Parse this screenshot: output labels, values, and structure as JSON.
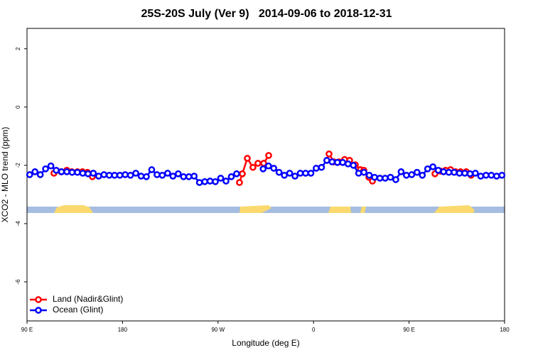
{
  "chart_data": {
    "type": "line",
    "title": "25S-20S July (Ver 9)   2014-09-06 to 2018-12-31",
    "x_label": "Longitude (deg E)",
    "y_label": "XCO2 - MLO trend (ppm)",
    "xlim": [
      90,
      540
    ],
    "ylim": [
      -7.34,
      2.7
    ],
    "xticks": [
      {
        "value": 90,
        "label": "90 E"
      },
      180,
      {
        "value": 270,
        "label": "90 W"
      },
      {
        "value": 360,
        "label": "0"
      },
      {
        "value": 450,
        "label": "90 E"
      },
      {
        "value": 540,
        "label": "180"
      }
    ],
    "yticks": [
      -6,
      -4,
      -2,
      0,
      2
    ],
    "legend": "bottom-left",
    "series": [
      {
        "name": "Land (Nadir&Glint)",
        "color": "#ff0000",
        "x": [
          115.4,
          122.1,
          127.5,
          132.2,
          137.5,
          142.2,
          146.9,
          151.6,
          200,
          290.2,
          292.9,
          297.6,
          302.9,
          307.6,
          313,
          317.7,
          390,
          374.6,
          379.3,
          384,
          389.3,
          394,
          399.4,
          404.1,
          407.4,
          412.1,
          415.5,
          450,
          474.4,
          479.7,
          484.4,
          489.1,
          493.8,
          498.5,
          503.9,
          508.5
        ],
        "values": [
          -2.27,
          -2.22,
          -2.17,
          -2.22,
          -2.22,
          -2.22,
          -2.24,
          -2.39,
          null,
          -2.59,
          -2.29,
          -1.76,
          -2.07,
          -1.93,
          -1.93,
          -1.66,
          null,
          -1.61,
          -1.88,
          -1.88,
          -1.8,
          -1.83,
          -1.98,
          -2.15,
          -2.17,
          -2.41,
          -2.54,
          null,
          -2.29,
          -2.2,
          -2.17,
          -2.15,
          -2.22,
          -2.22,
          -2.22,
          -2.34
        ]
      },
      {
        "name": "Ocean (Glint)",
        "color": "#0000ff",
        "x": [
          92.5,
          97.5,
          102.5,
          107.5,
          112.5,
          117.5,
          122.5,
          127.5,
          132.5,
          137.5,
          142.5,
          147.5,
          152.5,
          157.5,
          162.5,
          167.5,
          172.5,
          177.5,
          182.5,
          187.5,
          192.5,
          197.5,
          202.5,
          207.5,
          212.5,
          217.5,
          222.5,
          227.5,
          232.5,
          237.5,
          242.5,
          247.5,
          252.5,
          257.5,
          262.5,
          267.5,
          272.5,
          277.5,
          282.5,
          287.5,
          292.5,
          297.5,
          302.5,
          307.5,
          312.5,
          317.5,
          322.5,
          327.5,
          332.5,
          337.5,
          342.5,
          347.5,
          352.5,
          357.5,
          362.5,
          367.5,
          372.5,
          377.5,
          382.5,
          387.5,
          392.5,
          397.5,
          402.5,
          407.5,
          412.5,
          417.5,
          422.5,
          427.5,
          432.5,
          437.5,
          442.5,
          447.5,
          452.5,
          457.5,
          462.5,
          467.5,
          472.5,
          477.5,
          482.5,
          487.5,
          492.5,
          497.5,
          502.5,
          507.5,
          512.5,
          517.5,
          522.5,
          527.5,
          532.5,
          537.5
        ],
        "values": [
          -2.32,
          -2.22,
          -2.32,
          -2.12,
          -2.02,
          -2.17,
          -2.22,
          -2.22,
          -2.24,
          -2.24,
          -2.27,
          -2.29,
          -2.27,
          -2.37,
          -2.32,
          -2.34,
          -2.34,
          -2.34,
          -2.32,
          -2.34,
          -2.27,
          -2.37,
          -2.39,
          -2.15,
          -2.32,
          -2.34,
          -2.27,
          -2.37,
          -2.29,
          -2.39,
          -2.39,
          -2.37,
          -2.59,
          -2.56,
          -2.54,
          -2.56,
          -2.44,
          -2.54,
          -2.39,
          -2.29,
          null,
          null,
          null,
          null,
          -2.12,
          -2.02,
          -2.1,
          -2.24,
          -2.34,
          -2.27,
          -2.37,
          -2.27,
          -2.27,
          -2.27,
          -2.1,
          -2.07,
          -1.83,
          -1.88,
          -1.9,
          -1.9,
          -1.95,
          -2.0,
          -2.27,
          -2.24,
          -2.34,
          -2.41,
          -2.44,
          -2.44,
          -2.41,
          -2.49,
          -2.22,
          -2.34,
          -2.32,
          -2.24,
          -2.34,
          -2.12,
          -2.05,
          -2.17,
          -2.22,
          -2.24,
          -2.24,
          -2.27,
          -2.27,
          -2.29,
          -2.27,
          -2.37,
          -2.34,
          -2.34,
          -2.37,
          -2.34
        ]
      }
    ]
  }
}
